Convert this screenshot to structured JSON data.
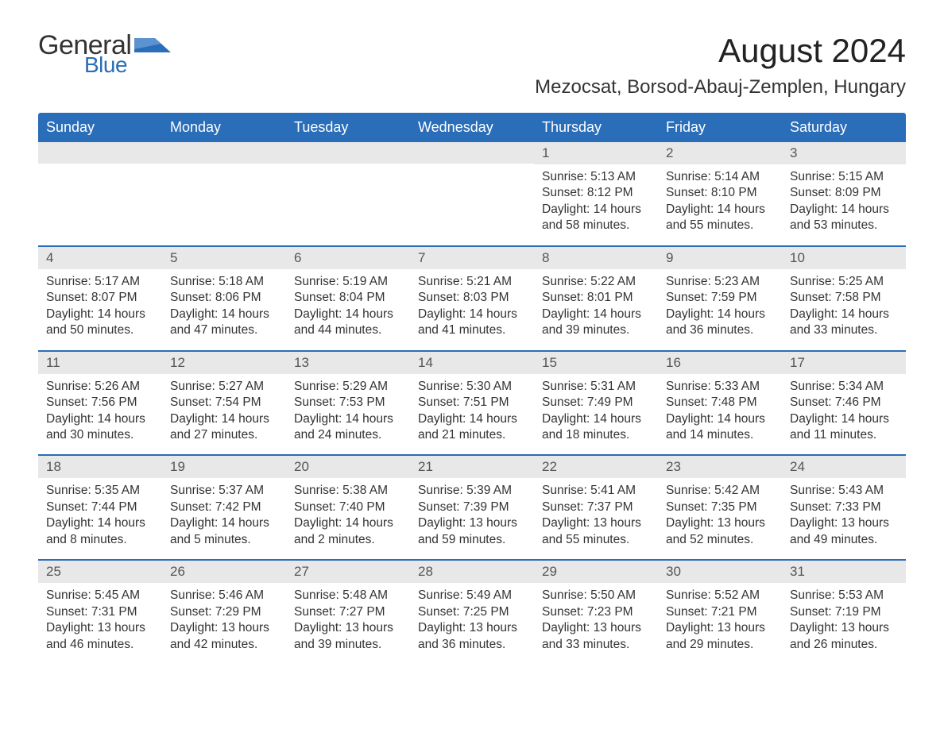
{
  "logo": {
    "word1": "General",
    "word2": "Blue"
  },
  "title": "August 2024",
  "location": "Mezocsat, Borsod-Abauj-Zemplen, Hungary",
  "colors": {
    "header_bg": "#2a6db8",
    "header_text": "#ffffff",
    "day_strip_bg": "#e8e8e8",
    "body_text": "#333333",
    "logo_dark": "#333333",
    "logo_blue": "#2a6db8",
    "week_divider": "#2a6db8",
    "page_bg": "#ffffff"
  },
  "typography": {
    "title_fontsize": 42,
    "location_fontsize": 24,
    "weekday_fontsize": 18,
    "daynum_fontsize": 17,
    "body_fontsize": 15.5
  },
  "weekdays": [
    "Sunday",
    "Monday",
    "Tuesday",
    "Wednesday",
    "Thursday",
    "Friday",
    "Saturday"
  ],
  "weeks": [
    [
      {
        "n": null
      },
      {
        "n": null
      },
      {
        "n": null
      },
      {
        "n": null
      },
      {
        "n": "1",
        "sunrise": "Sunrise: 5:13 AM",
        "sunset": "Sunset: 8:12 PM",
        "day1": "Daylight: 14 hours",
        "day2": "and 58 minutes."
      },
      {
        "n": "2",
        "sunrise": "Sunrise: 5:14 AM",
        "sunset": "Sunset: 8:10 PM",
        "day1": "Daylight: 14 hours",
        "day2": "and 55 minutes."
      },
      {
        "n": "3",
        "sunrise": "Sunrise: 5:15 AM",
        "sunset": "Sunset: 8:09 PM",
        "day1": "Daylight: 14 hours",
        "day2": "and 53 minutes."
      }
    ],
    [
      {
        "n": "4",
        "sunrise": "Sunrise: 5:17 AM",
        "sunset": "Sunset: 8:07 PM",
        "day1": "Daylight: 14 hours",
        "day2": "and 50 minutes."
      },
      {
        "n": "5",
        "sunrise": "Sunrise: 5:18 AM",
        "sunset": "Sunset: 8:06 PM",
        "day1": "Daylight: 14 hours",
        "day2": "and 47 minutes."
      },
      {
        "n": "6",
        "sunrise": "Sunrise: 5:19 AM",
        "sunset": "Sunset: 8:04 PM",
        "day1": "Daylight: 14 hours",
        "day2": "and 44 minutes."
      },
      {
        "n": "7",
        "sunrise": "Sunrise: 5:21 AM",
        "sunset": "Sunset: 8:03 PM",
        "day1": "Daylight: 14 hours",
        "day2": "and 41 minutes."
      },
      {
        "n": "8",
        "sunrise": "Sunrise: 5:22 AM",
        "sunset": "Sunset: 8:01 PM",
        "day1": "Daylight: 14 hours",
        "day2": "and 39 minutes."
      },
      {
        "n": "9",
        "sunrise": "Sunrise: 5:23 AM",
        "sunset": "Sunset: 7:59 PM",
        "day1": "Daylight: 14 hours",
        "day2": "and 36 minutes."
      },
      {
        "n": "10",
        "sunrise": "Sunrise: 5:25 AM",
        "sunset": "Sunset: 7:58 PM",
        "day1": "Daylight: 14 hours",
        "day2": "and 33 minutes."
      }
    ],
    [
      {
        "n": "11",
        "sunrise": "Sunrise: 5:26 AM",
        "sunset": "Sunset: 7:56 PM",
        "day1": "Daylight: 14 hours",
        "day2": "and 30 minutes."
      },
      {
        "n": "12",
        "sunrise": "Sunrise: 5:27 AM",
        "sunset": "Sunset: 7:54 PM",
        "day1": "Daylight: 14 hours",
        "day2": "and 27 minutes."
      },
      {
        "n": "13",
        "sunrise": "Sunrise: 5:29 AM",
        "sunset": "Sunset: 7:53 PM",
        "day1": "Daylight: 14 hours",
        "day2": "and 24 minutes."
      },
      {
        "n": "14",
        "sunrise": "Sunrise: 5:30 AM",
        "sunset": "Sunset: 7:51 PM",
        "day1": "Daylight: 14 hours",
        "day2": "and 21 minutes."
      },
      {
        "n": "15",
        "sunrise": "Sunrise: 5:31 AM",
        "sunset": "Sunset: 7:49 PM",
        "day1": "Daylight: 14 hours",
        "day2": "and 18 minutes."
      },
      {
        "n": "16",
        "sunrise": "Sunrise: 5:33 AM",
        "sunset": "Sunset: 7:48 PM",
        "day1": "Daylight: 14 hours",
        "day2": "and 14 minutes."
      },
      {
        "n": "17",
        "sunrise": "Sunrise: 5:34 AM",
        "sunset": "Sunset: 7:46 PM",
        "day1": "Daylight: 14 hours",
        "day2": "and 11 minutes."
      }
    ],
    [
      {
        "n": "18",
        "sunrise": "Sunrise: 5:35 AM",
        "sunset": "Sunset: 7:44 PM",
        "day1": "Daylight: 14 hours",
        "day2": "and 8 minutes."
      },
      {
        "n": "19",
        "sunrise": "Sunrise: 5:37 AM",
        "sunset": "Sunset: 7:42 PM",
        "day1": "Daylight: 14 hours",
        "day2": "and 5 minutes."
      },
      {
        "n": "20",
        "sunrise": "Sunrise: 5:38 AM",
        "sunset": "Sunset: 7:40 PM",
        "day1": "Daylight: 14 hours",
        "day2": "and 2 minutes."
      },
      {
        "n": "21",
        "sunrise": "Sunrise: 5:39 AM",
        "sunset": "Sunset: 7:39 PM",
        "day1": "Daylight: 13 hours",
        "day2": "and 59 minutes."
      },
      {
        "n": "22",
        "sunrise": "Sunrise: 5:41 AM",
        "sunset": "Sunset: 7:37 PM",
        "day1": "Daylight: 13 hours",
        "day2": "and 55 minutes."
      },
      {
        "n": "23",
        "sunrise": "Sunrise: 5:42 AM",
        "sunset": "Sunset: 7:35 PM",
        "day1": "Daylight: 13 hours",
        "day2": "and 52 minutes."
      },
      {
        "n": "24",
        "sunrise": "Sunrise: 5:43 AM",
        "sunset": "Sunset: 7:33 PM",
        "day1": "Daylight: 13 hours",
        "day2": "and 49 minutes."
      }
    ],
    [
      {
        "n": "25",
        "sunrise": "Sunrise: 5:45 AM",
        "sunset": "Sunset: 7:31 PM",
        "day1": "Daylight: 13 hours",
        "day2": "and 46 minutes."
      },
      {
        "n": "26",
        "sunrise": "Sunrise: 5:46 AM",
        "sunset": "Sunset: 7:29 PM",
        "day1": "Daylight: 13 hours",
        "day2": "and 42 minutes."
      },
      {
        "n": "27",
        "sunrise": "Sunrise: 5:48 AM",
        "sunset": "Sunset: 7:27 PM",
        "day1": "Daylight: 13 hours",
        "day2": "and 39 minutes."
      },
      {
        "n": "28",
        "sunrise": "Sunrise: 5:49 AM",
        "sunset": "Sunset: 7:25 PM",
        "day1": "Daylight: 13 hours",
        "day2": "and 36 minutes."
      },
      {
        "n": "29",
        "sunrise": "Sunrise: 5:50 AM",
        "sunset": "Sunset: 7:23 PM",
        "day1": "Daylight: 13 hours",
        "day2": "and 33 minutes."
      },
      {
        "n": "30",
        "sunrise": "Sunrise: 5:52 AM",
        "sunset": "Sunset: 7:21 PM",
        "day1": "Daylight: 13 hours",
        "day2": "and 29 minutes."
      },
      {
        "n": "31",
        "sunrise": "Sunrise: 5:53 AM",
        "sunset": "Sunset: 7:19 PM",
        "day1": "Daylight: 13 hours",
        "day2": "and 26 minutes."
      }
    ]
  ]
}
